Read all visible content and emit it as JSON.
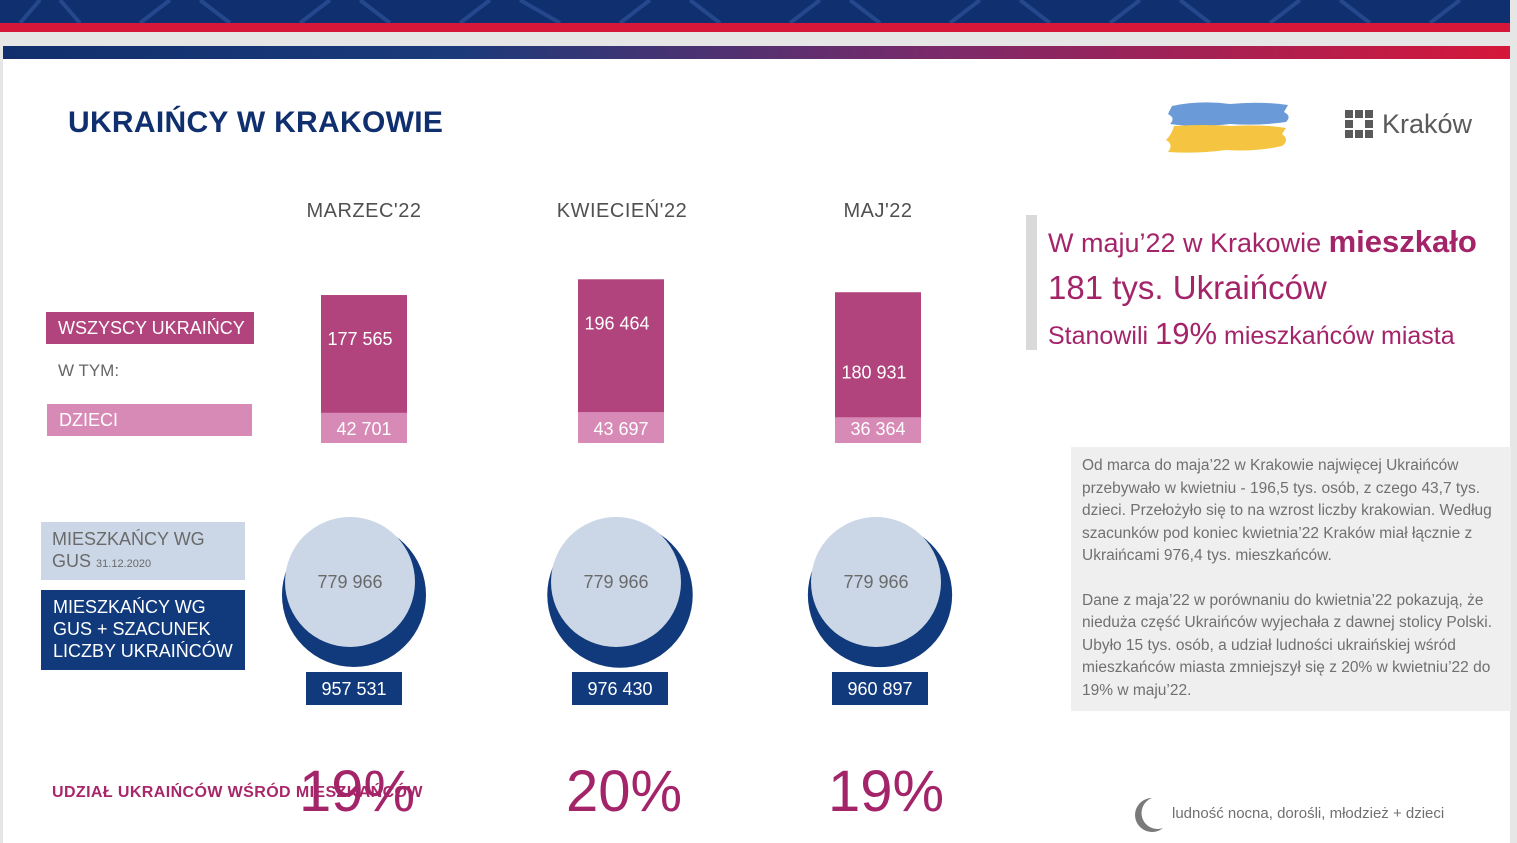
{
  "header": {
    "title": "UKRAIŃCY W KRAKOWIE",
    "logo_text": "Kraków",
    "colors": {
      "navy": "#102f6e",
      "red": "#d5173a",
      "magenta": "#b1437d",
      "pink": "#d78ab5",
      "light_blue": "#cbd7e6",
      "dark_blue": "#113a7c",
      "percent": "#a4246a"
    }
  },
  "legend": {
    "all": "WSZYSCY UKRAIŃCY",
    "wtym": "W TYM:",
    "kids": "DZIECI",
    "gus_main": "MIESZKAŃCY WG GUS",
    "gus_date": "31.12.2020",
    "est": "MIESZKAŃCY WG GUS + SZACUNEK LICZBY UKRAIŃCÓW",
    "share": "UDZIAŁ UKRAIŃCÓW WŚRÓD MIESZKAŃCÓW"
  },
  "chart_data": [
    {
      "type": "bar",
      "categories": [
        "MARZEC'22",
        "KWIECIEŃ'22",
        "MAJ'22"
      ],
      "series": [
        {
          "name": "WSZYSCY UKRAIŃCY",
          "values": [
            177565,
            196464,
            180931
          ],
          "labels": [
            "177 565",
            "196 464",
            "180 931"
          ]
        },
        {
          "name": "DZIECI",
          "values": [
            42701,
            43697,
            36364
          ],
          "labels": [
            "42 701",
            "43 697",
            "36 364"
          ]
        }
      ]
    },
    {
      "type": "bubble",
      "categories": [
        "MARZEC'22",
        "KWIECIEŃ'22",
        "MAJ'22"
      ],
      "series": [
        {
          "name": "MIESZKAŃCY WG GUS",
          "values": [
            779966,
            779966,
            779966
          ],
          "labels": [
            "779 966",
            "779 966",
            "779 966"
          ]
        },
        {
          "name": "MIESZKAŃCY WG GUS + SZACUNEK LICZBY UKRAIŃCÓW",
          "values": [
            957531,
            976430,
            960897
          ],
          "labels": [
            "957 531",
            "976 430",
            "960 897"
          ]
        }
      ]
    },
    {
      "type": "table",
      "categories": [
        "MARZEC'22",
        "KWIECIEŃ'22",
        "MAJ'22"
      ],
      "series": [
        {
          "name": "UDZIAŁ UKRAIŃCÓW WŚRÓD MIESZKAŃCÓW",
          "values": [
            19,
            20,
            19
          ],
          "labels": [
            "19%",
            "20%",
            "19%"
          ]
        }
      ]
    }
  ],
  "quote": {
    "l1a": "W maju’22 w Krakowie",
    "l1b": "mieszkało",
    "l2": "181 tys. Ukraińców",
    "l3a": "Stanowili",
    "l3b": "19%",
    "l3c": "mieszkańców miasta"
  },
  "description": {
    "p1": "Od marca do maja’22 w Krakowie najwięcej Ukraińców przebywało w kwietniu - 196,5 tys. osób, z czego 43,7 tys. dzieci. Przełożyło się to na wzrost liczby krakowian. Według szacunków pod koniec kwietnia’22 Kraków miał łącznie z Ukraińcami 976,4 tys. mieszkańców.",
    "p2": "Dane z maja’22 w porównaniu do kwietnia’22 pokazują, że nieduża część Ukraińców wyjechała z dawnej stolicy Polski. Ubyło 15 tys. osób, a udział ludności ukraińskiej wśród mieszkańców miasta zmniejszył się z 20% w kwietniu’22 do 19% w maju’22."
  },
  "footer": {
    "note": "ludność nocna,  dorośli, młodzież + dzieci"
  }
}
